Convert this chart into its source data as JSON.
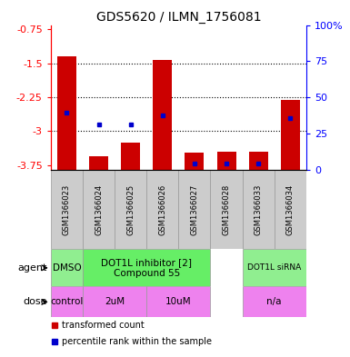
{
  "title": "GDS5620 / ILMN_1756081",
  "samples": [
    "GSM1366023",
    "GSM1366024",
    "GSM1366025",
    "GSM1366026",
    "GSM1366027",
    "GSM1366028",
    "GSM1366033",
    "GSM1366034"
  ],
  "bar_values": [
    -1.35,
    -3.55,
    -3.25,
    -1.43,
    -3.48,
    -3.45,
    -3.45,
    -2.3
  ],
  "blue_dot_values": [
    -2.6,
    -2.85,
    -2.85,
    -2.65,
    -3.72,
    -3.72,
    -3.72,
    -2.72
  ],
  "ylim_left": [
    -3.85,
    -0.65
  ],
  "ylim_right": [
    0,
    100
  ],
  "yticks_left": [
    -3.75,
    -3.0,
    -2.25,
    -1.5,
    -0.75
  ],
  "yticks_right": [
    0,
    25,
    50,
    75,
    100
  ],
  "ytick_labels_left": [
    "-3.75",
    "-3",
    "-2.25",
    "-1.5",
    "-0.75"
  ],
  "ytick_labels_right": [
    "0",
    "25",
    "50",
    "75",
    "100%"
  ],
  "dotted_lines": [
    -1.5,
    -2.25,
    -3.0
  ],
  "bar_color": "#cc0000",
  "dot_color": "#0000cc",
  "bar_width": 0.6,
  "sample_bg": "#cccccc",
  "agent_groups": [
    {
      "text": "DMSO",
      "cols": [
        0,
        0
      ],
      "color": "#90EE90",
      "fontsize": 7.5
    },
    {
      "text": "DOT1L inhibitor [2]\nCompound 55",
      "cols": [
        1,
        4
      ],
      "color": "#66EE66",
      "fontsize": 7.5
    },
    {
      "text": "DOT1L siRNA",
      "cols": [
        6,
        7
      ],
      "color": "#90EE90",
      "fontsize": 6.5
    }
  ],
  "dose_groups": [
    {
      "text": "control",
      "cols": [
        0,
        0
      ],
      "color": "#EE82EE",
      "fontsize": 7.5
    },
    {
      "text": "2uM",
      "cols": [
        1,
        2
      ],
      "color": "#EE82EE",
      "fontsize": 7.5
    },
    {
      "text": "10uM",
      "cols": [
        3,
        4
      ],
      "color": "#EE82EE",
      "fontsize": 7.5
    },
    {
      "text": "n/a",
      "cols": [
        6,
        7
      ],
      "color": "#EE82EE",
      "fontsize": 7.5
    }
  ],
  "legend_items": [
    {
      "label": "transformed count",
      "color": "#cc0000"
    },
    {
      "label": "percentile rank within the sample",
      "color": "#0000cc"
    }
  ],
  "title_fontsize": 10,
  "tick_fontsize": 8
}
